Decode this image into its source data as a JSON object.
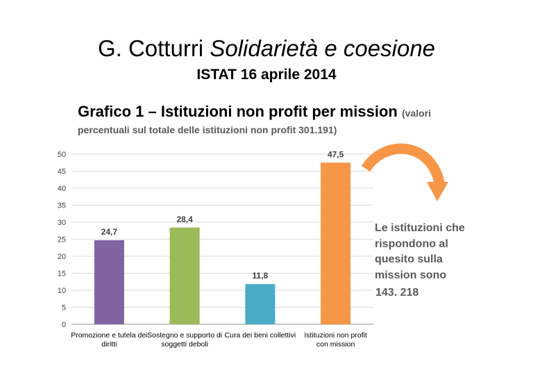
{
  "header": {
    "title_prefix": "G. Cotturri ",
    "title_italic": "Solidarietà e coesione",
    "subtitle": "ISTAT 16 aprile 2014",
    "chart_title": "Grafico 1 – Istituzioni non profit per mission",
    "chart_title_note": "(valori",
    "chart_note_line2": "percentuali sul totale delle istituzioni non profit 301.191)"
  },
  "callout": {
    "text": "Le istituzioni che rispondono al quesito sulla mission sono",
    "number": "143. 218",
    "arrow_color": "#F79646"
  },
  "chart_data": {
    "type": "bar",
    "categories": [
      [
        "Promozione e tutela dei",
        "diritti"
      ],
      [
        "Sostegno e supporto di",
        "soggetti deboli"
      ],
      [
        "Cura dei beni collettivi"
      ],
      [
        "Istituzioni non profit",
        "con mission"
      ]
    ],
    "values": [
      24.7,
      28.4,
      11.8,
      47.5
    ],
    "value_labels": [
      "24,7",
      "28,4",
      "11,8",
      "47,5"
    ],
    "colors": [
      "#8064A2",
      "#9BBB59",
      "#4BACC6",
      "#F79646"
    ],
    "ylim": [
      0,
      50
    ],
    "yticks": [
      0,
      5,
      10,
      15,
      20,
      25,
      30,
      35,
      40,
      45,
      50
    ],
    "grid": true,
    "legend": false
  }
}
